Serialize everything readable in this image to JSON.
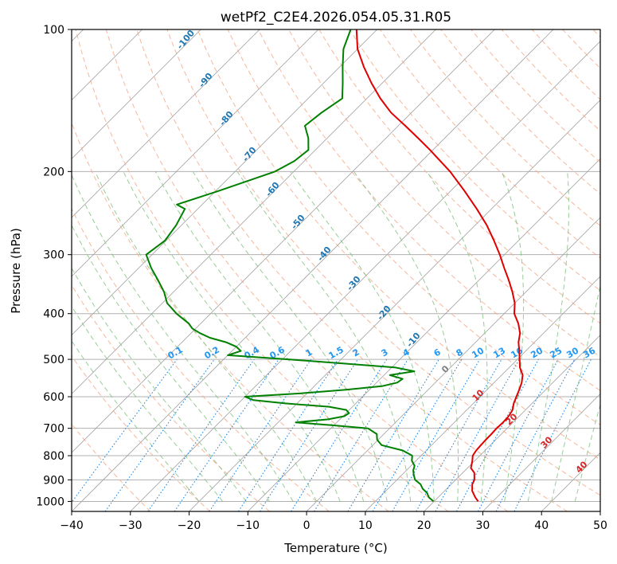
{
  "chart_data": {
    "type": "line",
    "title": "wetPf2_C2E4.2026.054.05.31.R05",
    "xlabel": "Temperature (°C)",
    "ylabel": "Pressure (hPa)",
    "xlim": [
      -40,
      50
    ],
    "ylim": [
      1050,
      100
    ],
    "x_ticks": [
      -40,
      -30,
      -20,
      -10,
      0,
      10,
      20,
      30,
      40,
      50
    ],
    "x_tick_labels": [
      "−40",
      "−30",
      "−20",
      "−10",
      "0",
      "10",
      "20",
      "30",
      "40",
      "50"
    ],
    "y_ticks": [
      100,
      200,
      300,
      400,
      500,
      600,
      700,
      800,
      900,
      1000
    ],
    "y_tick_labels": [
      "100",
      "200",
      "300",
      "400",
      "500",
      "600",
      "700",
      "800",
      "900",
      "1000"
    ],
    "colors": {
      "temperature": "#e00000",
      "dewpoint": "#008000",
      "dry_adiabat": "#f4a582",
      "moist_adiabat": "#7fbf7f",
      "mixing_ratio": "#1e88e5",
      "isotherm": "#a0a0a0",
      "grid": "#b0b0b0",
      "adiabat_label": "#1f77b4",
      "mixing_label": "#2196f3",
      "moist_label": "#d62728"
    },
    "series": [
      {
        "name": "temperature",
        "pressure": [
          1000,
          980,
          950,
          920,
          900,
          870,
          850,
          820,
          800,
          780,
          760,
          740,
          720,
          700,
          680,
          660,
          640,
          620,
          600,
          580,
          560,
          540,
          520,
          500,
          480,
          460,
          440,
          420,
          400,
          380,
          360,
          340,
          320,
          300,
          280,
          260,
          240,
          220,
          200,
          180,
          170,
          160,
          150,
          140,
          130,
          120,
          110,
          100
        ],
        "temperature": [
          27.5,
          26.3,
          24.7,
          23.6,
          23.2,
          22.0,
          20.6,
          19.6,
          18.8,
          18.5,
          18.4,
          18.3,
          18.3,
          18.2,
          18.3,
          18.2,
          17.8,
          16.9,
          16.2,
          15.5,
          14.7,
          13.6,
          11.8,
          10.4,
          8.9,
          7.3,
          6.0,
          4.1,
          1.7,
          0.0,
          -2.3,
          -4.9,
          -7.8,
          -10.8,
          -14.2,
          -18.0,
          -22.5,
          -27.6,
          -33.4,
          -40.5,
          -44.5,
          -48.8,
          -53.5,
          -57.7,
          -61.8,
          -65.9,
          -70.0,
          -73.5
        ]
      },
      {
        "name": "dewpoint",
        "pressure": [
          1000,
          980,
          960,
          940,
          920,
          900,
          880,
          860,
          840,
          820,
          800,
          780,
          760,
          740,
          720,
          700,
          690,
          680,
          670,
          660,
          650,
          640,
          630,
          620,
          610,
          600,
          590,
          580,
          570,
          560,
          550,
          540,
          530,
          520,
          510,
          500,
          490,
          480,
          470,
          460,
          450,
          440,
          430,
          420,
          400,
          380,
          360,
          340,
          320,
          300,
          280,
          260,
          240,
          235,
          220,
          200,
          190,
          180,
          170,
          160,
          150,
          140,
          130,
          120,
          110,
          100
        ],
        "dewpoint": [
          19.9,
          18.4,
          17.4,
          15.9,
          14.8,
          13.1,
          12.1,
          11.2,
          10.6,
          9.3,
          8.5,
          6.0,
          1.5,
          -0.2,
          -1.2,
          -3.7,
          -10.0,
          -17.0,
          -12.0,
          -9.8,
          -9.5,
          -10.5,
          -14.0,
          -22.0,
          -28.0,
          -30.0,
          -21.0,
          -14.0,
          -8.5,
          -6.5,
          -6.2,
          -9.0,
          -5.5,
          -9.5,
          -19.0,
          -29.0,
          -40.0,
          -38.5,
          -40.0,
          -42.5,
          -46.0,
          -48.5,
          -50.6,
          -52.0,
          -55.8,
          -59.2,
          -61.6,
          -64.6,
          -67.9,
          -71.0,
          -70.2,
          -70.9,
          -72.2,
          -74.3,
          -69.6,
          -63.2,
          -61.7,
          -61.2,
          -63.2,
          -65.9,
          -65.3,
          -64.2,
          -66.7,
          -69.5,
          -72.4,
          -74.5
        ]
      }
    ],
    "dry_adiabat_labels": [
      "-100",
      "-90",
      "-80",
      "-70",
      "-60",
      "-50",
      "-40",
      "-30",
      "-20",
      "-10"
    ],
    "mixing_ratio_labels": [
      "0.1",
      "0.2",
      "0.4",
      "0.6",
      "1",
      "1.5",
      "2",
      "3",
      "4",
      "6",
      "8",
      "10",
      "13",
      "16",
      "20",
      "25",
      "30",
      "36"
    ],
    "mixing_ratio_values": [
      0.1,
      0.2,
      0.4,
      0.6,
      1,
      1.5,
      2,
      3,
      4,
      6,
      8,
      10,
      13,
      16,
      20,
      25,
      30,
      36
    ],
    "moist_adiabat_labels": [
      "0",
      "10",
      "20",
      "30",
      "40"
    ]
  }
}
